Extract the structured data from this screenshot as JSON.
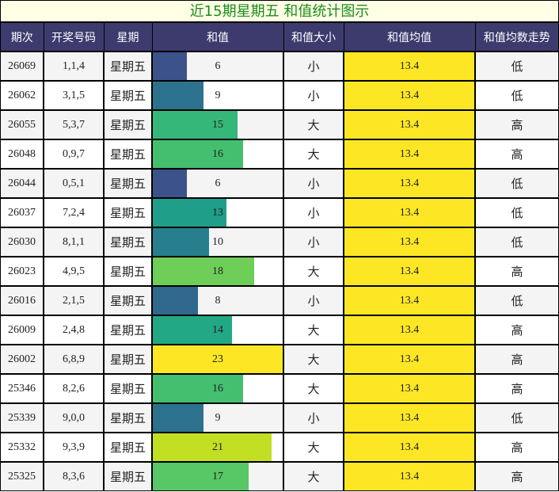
{
  "title": "近15期星期五 和值统计图示",
  "headers": [
    "期次",
    "开奖号码",
    "星期",
    "和值",
    "和值大小",
    "和值均值",
    "和值均数走势"
  ],
  "colors": {
    "header_bg": "#3d3b6e",
    "title_bg": "#ffffe6",
    "title_text": "#1a8c1a",
    "avg_bg": "#fde725"
  },
  "rows": [
    {
      "issue": "26069",
      "numbers": "1,1,4",
      "weekday": "星期五",
      "sum": "6",
      "size": "小",
      "avg": "13.4",
      "trend": "低",
      "bar_color": "#3b528b"
    },
    {
      "issue": "26062",
      "numbers": "3,1,5",
      "weekday": "星期五",
      "sum": "9",
      "size": "小",
      "avg": "13.4",
      "trend": "低",
      "bar_color": "#2c728e"
    },
    {
      "issue": "26055",
      "numbers": "5,3,7",
      "weekday": "星期五",
      "sum": "15",
      "size": "大",
      "avg": "13.4",
      "trend": "高",
      "bar_color": "#35b779"
    },
    {
      "issue": "26048",
      "numbers": "0,9,7",
      "weekday": "星期五",
      "sum": "16",
      "size": "大",
      "avg": "13.4",
      "trend": "高",
      "bar_color": "#44bf70"
    },
    {
      "issue": "26044",
      "numbers": "0,5,1",
      "weekday": "星期五",
      "sum": "6",
      "size": "小",
      "avg": "13.4",
      "trend": "低",
      "bar_color": "#3b528b"
    },
    {
      "issue": "26037",
      "numbers": "7,2,4",
      "weekday": "星期五",
      "sum": "13",
      "size": "小",
      "avg": "13.4",
      "trend": "低",
      "bar_color": "#1f9e89"
    },
    {
      "issue": "26030",
      "numbers": "8,1,1",
      "weekday": "星期五",
      "sum": "10",
      "size": "小",
      "avg": "13.4",
      "trend": "低",
      "bar_color": "#277f8e"
    },
    {
      "issue": "26023",
      "numbers": "4,9,5",
      "weekday": "星期五",
      "sum": "18",
      "size": "大",
      "avg": "13.4",
      "trend": "高",
      "bar_color": "#6ece58"
    },
    {
      "issue": "26016",
      "numbers": "2,1,5",
      "weekday": "星期五",
      "sum": "8",
      "size": "小",
      "avg": "13.4",
      "trend": "低",
      "bar_color": "#31688e"
    },
    {
      "issue": "26009",
      "numbers": "2,4,8",
      "weekday": "星期五",
      "sum": "14",
      "size": "大",
      "avg": "13.4",
      "trend": "高",
      "bar_color": "#22a884"
    },
    {
      "issue": "26002",
      "numbers": "6,8,9",
      "weekday": "星期五",
      "sum": "23",
      "size": "大",
      "avg": "13.4",
      "trend": "高",
      "bar_color": "#fde725"
    },
    {
      "issue": "25346",
      "numbers": "8,2,6",
      "weekday": "星期五",
      "sum": "16",
      "size": "大",
      "avg": "13.4",
      "trend": "高",
      "bar_color": "#44bf70"
    },
    {
      "issue": "25339",
      "numbers": "9,0,0",
      "weekday": "星期五",
      "sum": "9",
      "size": "小",
      "avg": "13.4",
      "trend": "低",
      "bar_color": "#2c728e"
    },
    {
      "issue": "25332",
      "numbers": "9,3,9",
      "weekday": "星期五",
      "sum": "21",
      "size": "大",
      "avg": "13.4",
      "trend": "高",
      "bar_color": "#c2df23"
    },
    {
      "issue": "25325",
      "numbers": "8,3,6",
      "weekday": "星期五",
      "sum": "17",
      "size": "大",
      "avg": "13.4",
      "trend": "高",
      "bar_color": "#58c765"
    }
  ],
  "chart_data": {
    "type": "table",
    "title": "近15期星期五 和值统计图示",
    "columns": [
      "期次",
      "开奖号码",
      "星期",
      "和值",
      "和值大小",
      "和值均值",
      "和值均数走势"
    ],
    "categories": [
      "26069",
      "26062",
      "26055",
      "26048",
      "26044",
      "26037",
      "26030",
      "26023",
      "26016",
      "26009",
      "26002",
      "25346",
      "25339",
      "25332",
      "25325"
    ],
    "series": [
      {
        "name": "和值",
        "values": [
          6,
          9,
          15,
          16,
          6,
          13,
          10,
          18,
          8,
          14,
          23,
          16,
          9,
          21,
          17
        ]
      },
      {
        "name": "和值均值",
        "values": [
          13.4,
          13.4,
          13.4,
          13.4,
          13.4,
          13.4,
          13.4,
          13.4,
          13.4,
          13.4,
          13.4,
          13.4,
          13.4,
          13.4,
          13.4
        ]
      }
    ],
    "bar_max": 23,
    "bar_colormap": "viridis"
  }
}
